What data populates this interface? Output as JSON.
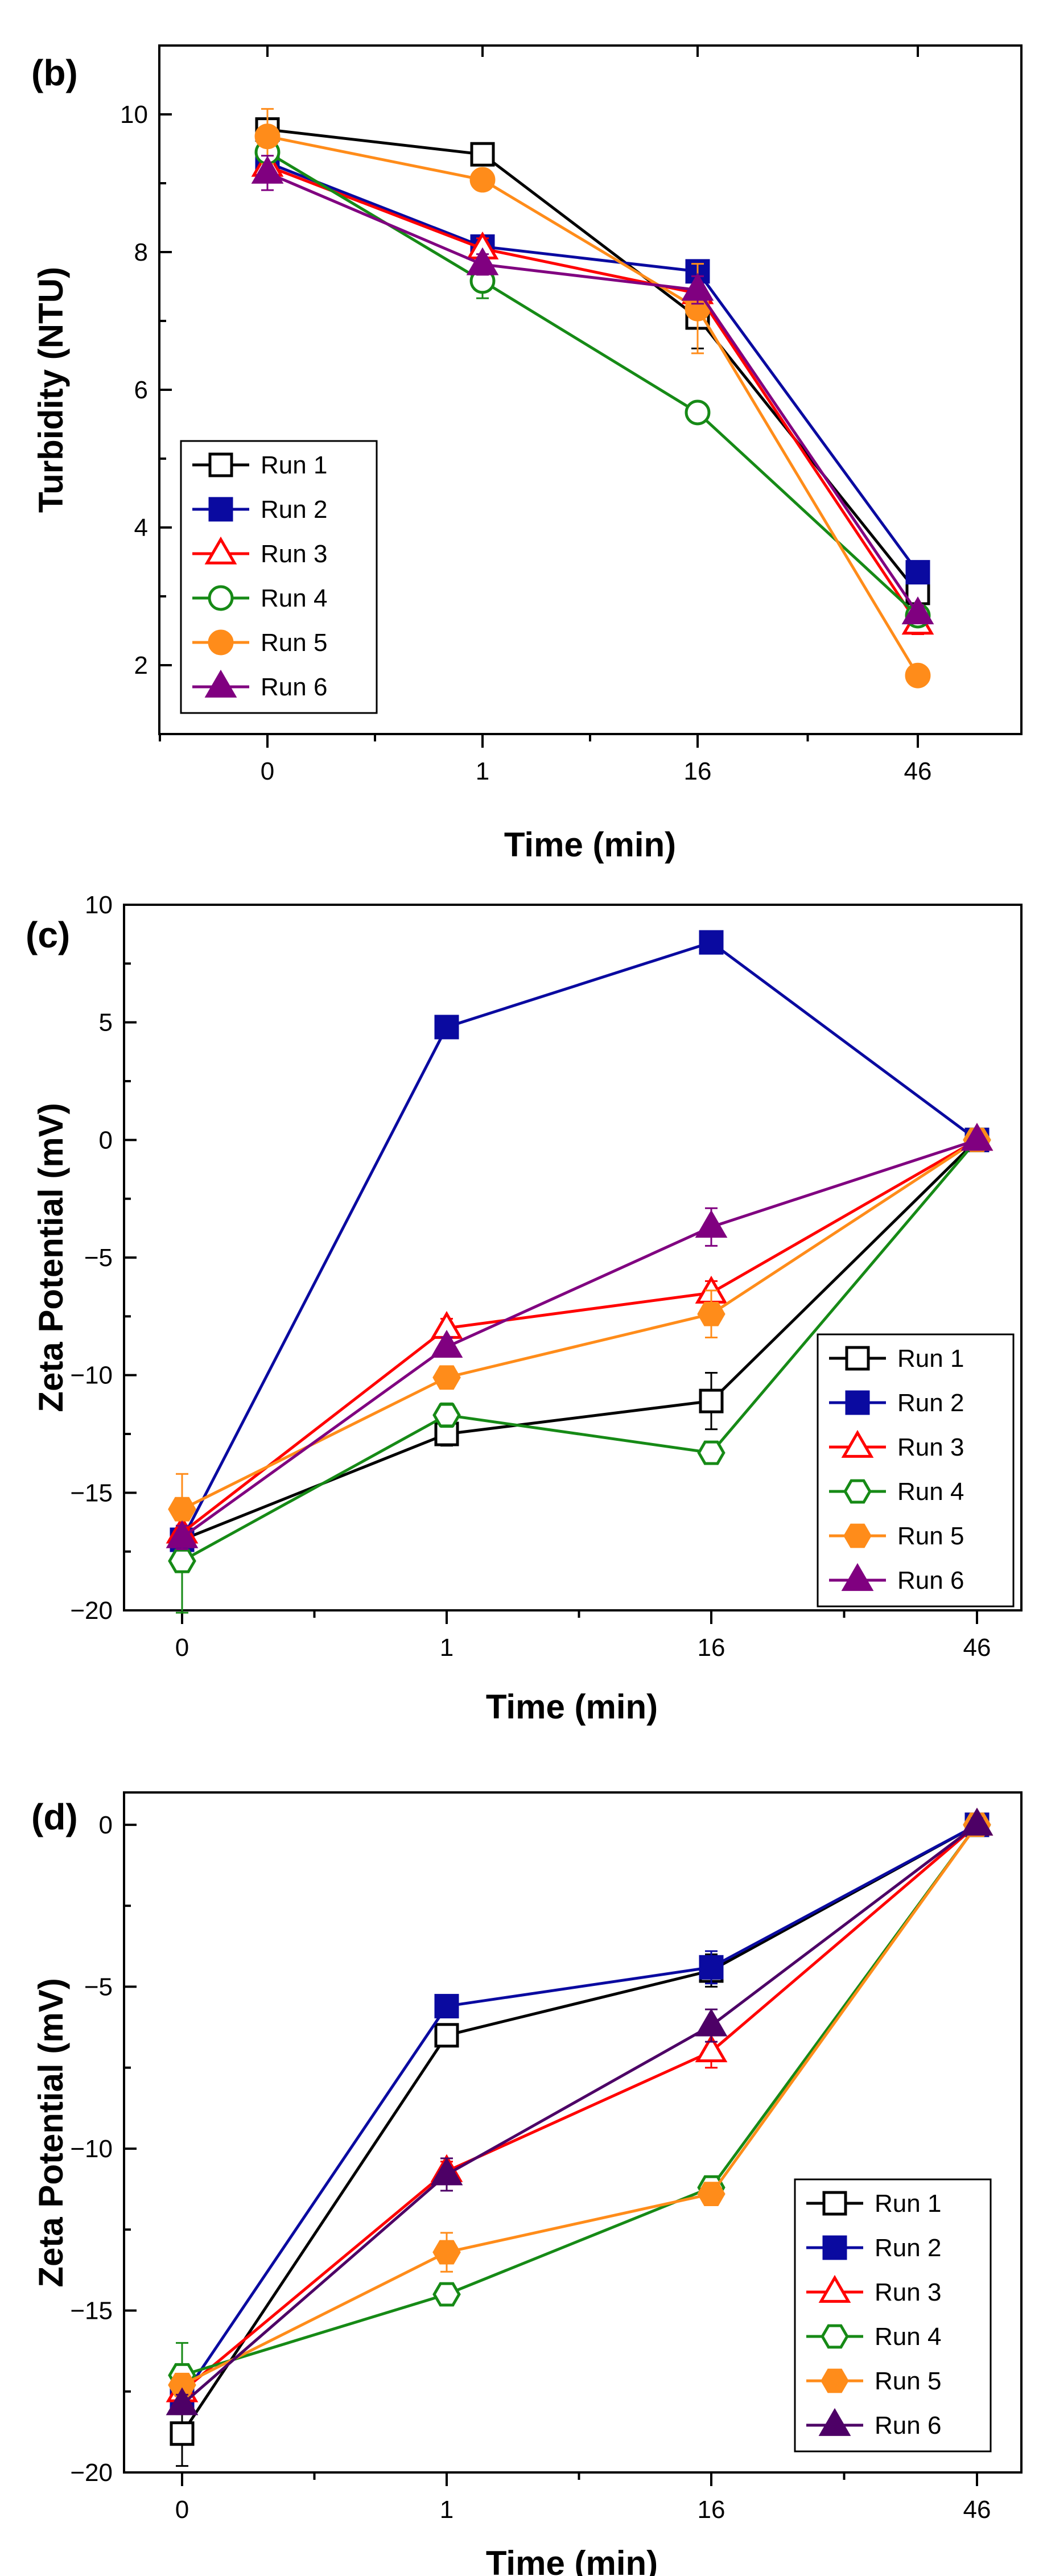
{
  "chart_data": [
    {
      "panel_label": "(b)",
      "type": "line",
      "xlabel": "Time (min)",
      "ylabel": "Turbidity (NTU)",
      "categories": [
        "0",
        "1",
        "16",
        "46"
      ],
      "ylim": [
        1,
        11
      ],
      "yticks": [
        2,
        4,
        6,
        8,
        10
      ],
      "legend_position": "bottom-left",
      "series": [
        {
          "name": "Run 1",
          "values": [
            9.78,
            9.42,
            7.05,
            3.05
          ],
          "errors": [
            0.15,
            0.12,
            0.45,
            0.2
          ],
          "marker": "square",
          "filled": false,
          "color": "#000000"
        },
        {
          "name": "Run 2",
          "values": [
            9.3,
            8.08,
            7.72,
            3.35
          ],
          "errors": [
            0.15,
            0.12,
            0.15,
            0.12
          ],
          "marker": "square",
          "filled": true,
          "color": "#0a0aa0"
        },
        {
          "name": "Run 3",
          "values": [
            9.25,
            8.05,
            7.4,
            2.6
          ],
          "errors": [
            0.15,
            0.15,
            0.25,
            0.15
          ],
          "marker": "triangle",
          "filled": false,
          "color": "#ff0000"
        },
        {
          "name": "Run 4",
          "values": [
            9.45,
            7.58,
            5.67,
            2.72
          ],
          "errors": [
            0.15,
            0.25,
            0.1,
            0.1
          ],
          "marker": "circle",
          "filled": false,
          "color": "#168a16"
        },
        {
          "name": "Run 5",
          "values": [
            9.68,
            9.05,
            7.18,
            1.85
          ],
          "errors": [
            0.4,
            0.1,
            0.65,
            0.1
          ],
          "marker": "circle",
          "filled": true,
          "color": "#ff8c1a"
        },
        {
          "name": "Run 6",
          "values": [
            9.15,
            7.82,
            7.45,
            2.75
          ],
          "errors": [
            0.25,
            0.15,
            0.2,
            0.12
          ],
          "marker": "triangle",
          "filled": true,
          "color": "#800080"
        }
      ]
    },
    {
      "panel_label": "(c)",
      "type": "line",
      "xlabel": "Time (min)",
      "ylabel": "Zeta Potential (mV)",
      "categories": [
        "0",
        "1",
        "16",
        "46"
      ],
      "ylim": [
        -20,
        10
      ],
      "yticks": [
        -20,
        -15,
        -10,
        -5,
        0,
        5,
        10
      ],
      "legend_position": "bottom-right",
      "series": [
        {
          "name": "Run 1",
          "values": [
            -17.0,
            -12.5,
            -11.1,
            0
          ],
          "errors": [
            0.5,
            0.5,
            1.2,
            0.2
          ],
          "marker": "square",
          "filled": false,
          "color": "#000000"
        },
        {
          "name": "Run 2",
          "values": [
            -17.0,
            4.8,
            8.4,
            0
          ],
          "errors": [
            0.3,
            0.2,
            0.2,
            0.2
          ],
          "marker": "square",
          "filled": true,
          "color": "#0a0aa0"
        },
        {
          "name": "Run 3",
          "values": [
            -16.7,
            -8.0,
            -6.5,
            0
          ],
          "errors": [
            0.3,
            0.4,
            0.5,
            0.2
          ],
          "marker": "triangle",
          "filled": false,
          "color": "#ff0000"
        },
        {
          "name": "Run 4",
          "values": [
            -17.9,
            -11.7,
            -13.3,
            0
          ],
          "errors": [
            2.2,
            0.5,
            0.3,
            0.2
          ],
          "marker": "hexagon",
          "filled": false,
          "color": "#168a16"
        },
        {
          "name": "Run 5",
          "values": [
            -15.7,
            -10.1,
            -7.4,
            0
          ],
          "errors": [
            1.5,
            0.4,
            1.0,
            0.2
          ],
          "marker": "hexagon",
          "filled": true,
          "color": "#ff8c1a"
        },
        {
          "name": "Run 6",
          "values": [
            -16.9,
            -8.8,
            -3.7,
            0
          ],
          "errors": [
            0.5,
            0.4,
            0.8,
            0.2
          ],
          "marker": "triangle",
          "filled": true,
          "color": "#800080"
        }
      ]
    },
    {
      "panel_label": "(d)",
      "type": "line",
      "xlabel": "Time (min)",
      "ylabel": "Zeta Potential (mV)",
      "categories": [
        "0",
        "1",
        "16",
        "46"
      ],
      "ylim": [
        -20,
        1
      ],
      "yticks": [
        -20,
        -15,
        -10,
        -5,
        0
      ],
      "legend_position": "bottom-right",
      "series": [
        {
          "name": "Run 1",
          "values": [
            -18.8,
            -6.5,
            -4.5,
            0
          ],
          "errors": [
            1.0,
            0.3,
            0.5,
            0.2
          ],
          "marker": "square",
          "filled": false,
          "color": "#000000"
        },
        {
          "name": "Run 2",
          "values": [
            -17.7,
            -5.6,
            -4.4,
            0
          ],
          "errors": [
            0.3,
            0.2,
            0.5,
            0.2
          ],
          "marker": "square",
          "filled": true,
          "color": "#0a0aa0"
        },
        {
          "name": "Run 3",
          "values": [
            -17.5,
            -10.7,
            -7.0,
            0
          ],
          "errors": [
            0.3,
            0.3,
            0.5,
            0.2
          ],
          "marker": "triangle",
          "filled": false,
          "color": "#ff0000"
        },
        {
          "name": "Run 4",
          "values": [
            -17.0,
            -14.5,
            -11.2,
            0
          ],
          "errors": [
            1.0,
            0.3,
            0.2,
            0.2
          ],
          "marker": "hexagon",
          "filled": false,
          "color": "#168a16"
        },
        {
          "name": "Run 5",
          "values": [
            -17.3,
            -13.2,
            -11.4,
            0
          ],
          "errors": [
            0.3,
            0.6,
            0.2,
            0.2
          ],
          "marker": "hexagon",
          "filled": true,
          "color": "#ff8c1a"
        },
        {
          "name": "Run 6",
          "values": [
            -17.9,
            -10.8,
            -6.2,
            0
          ],
          "errors": [
            0.3,
            0.5,
            0.5,
            0.2
          ],
          "marker": "triangle",
          "filled": true,
          "color": "#4d0066"
        }
      ]
    }
  ]
}
